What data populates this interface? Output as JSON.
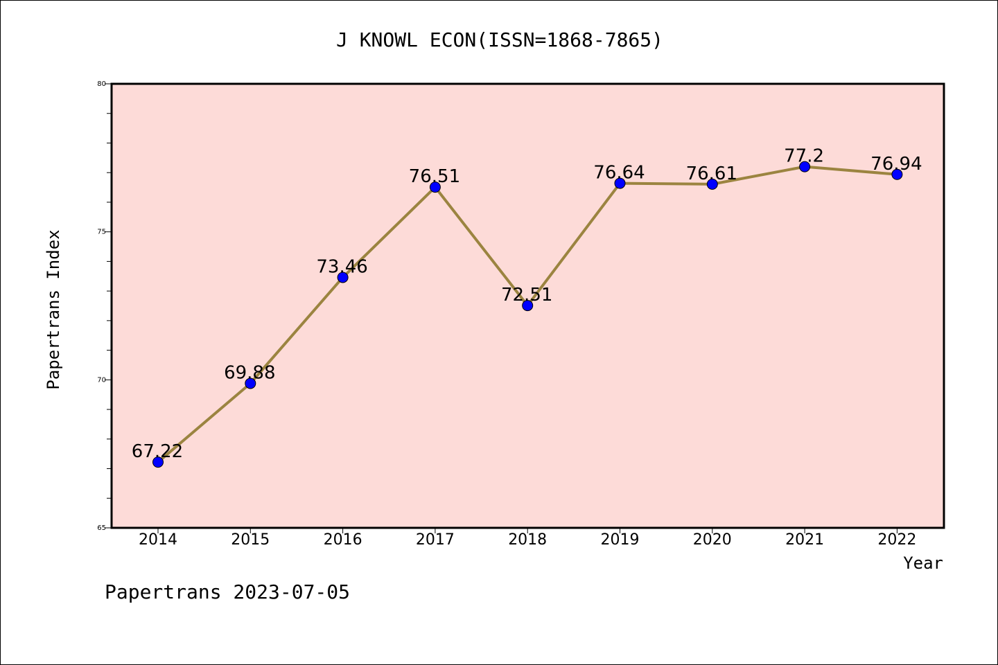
{
  "chart_data": {
    "type": "line",
    "title": "J KNOWL ECON(ISSN=1868-7865)",
    "xlabel": "Year",
    "ylabel": "Papertrans Index",
    "categories": [
      "2014",
      "2015",
      "2016",
      "2017",
      "2018",
      "2019",
      "2020",
      "2021",
      "2022"
    ],
    "series": [
      {
        "values": [
          67.22,
          69.88,
          73.46,
          76.51,
          72.51,
          76.64,
          76.61,
          77.2,
          76.94
        ],
        "labels": [
          "67.22",
          "69.88",
          "73.46",
          "76.51",
          "72.51",
          "76.64",
          "76.61",
          "77.2",
          "76.94"
        ]
      }
    ],
    "ylim": [
      65,
      80
    ],
    "y_ticks": [
      "65",
      "70",
      "75",
      "80"
    ],
    "grid": false,
    "legend": "none",
    "colors": {
      "plot_background": "#fddbd8",
      "line": "#9b8440",
      "marker": "#0000ff"
    }
  },
  "footer": {
    "text": "Papertrans 2023-07-05"
  }
}
